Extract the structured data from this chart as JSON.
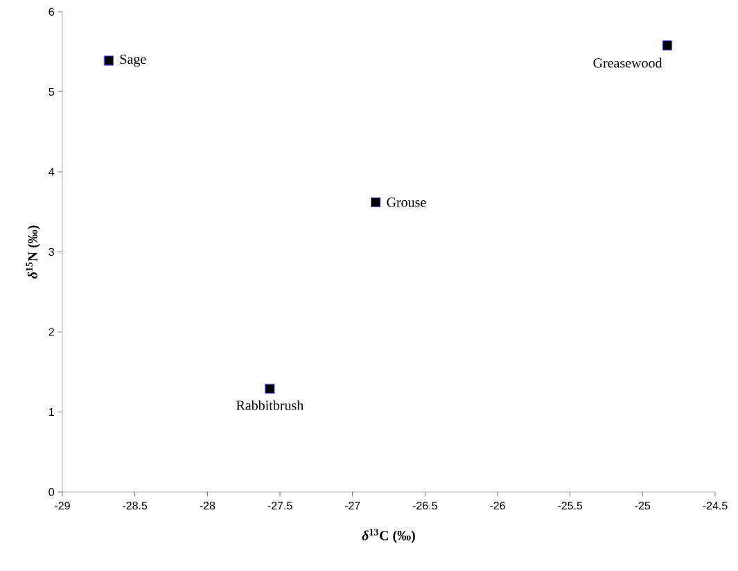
{
  "chart_data": {
    "type": "scatter",
    "xlabel": "*δ*$^{13}$C (‰)",
    "ylabel": "*δ*$^{15}$N (‰)",
    "series": [
      {
        "color": "#000000",
        "x": [
          -28.68,
          -24.83,
          -26.84,
          -27.57
        ],
        "values": [
          5.39,
          5.58,
          3.62,
          1.29
        ]
      }
    ],
    "annotations": [
      {
        "text": "Sage",
        "x": -28.68,
        "y": 5.39
      },
      {
        "text": "Greasewood",
        "x": -24.83,
        "y": 5.58
      },
      {
        "text": "Grouse",
        "x": -26.84,
        "y": 3.62
      },
      {
        "text": "Rabbitbrush",
        "x": -27.57,
        "y": 1.29
      }
    ],
    "xlim": [
      -29,
      -24.5
    ],
    "ylim": [
      0,
      6
    ],
    "xticks": [
      -29,
      -28.5,
      -28,
      -27.5,
      -27,
      -26.5,
      -26,
      -25.5,
      -25,
      -24.5
    ],
    "yticks": [
      0,
      1,
      2,
      3,
      4,
      5,
      6
    ],
    "grid": false,
    "marker": "square",
    "line_style": "none"
  }
}
